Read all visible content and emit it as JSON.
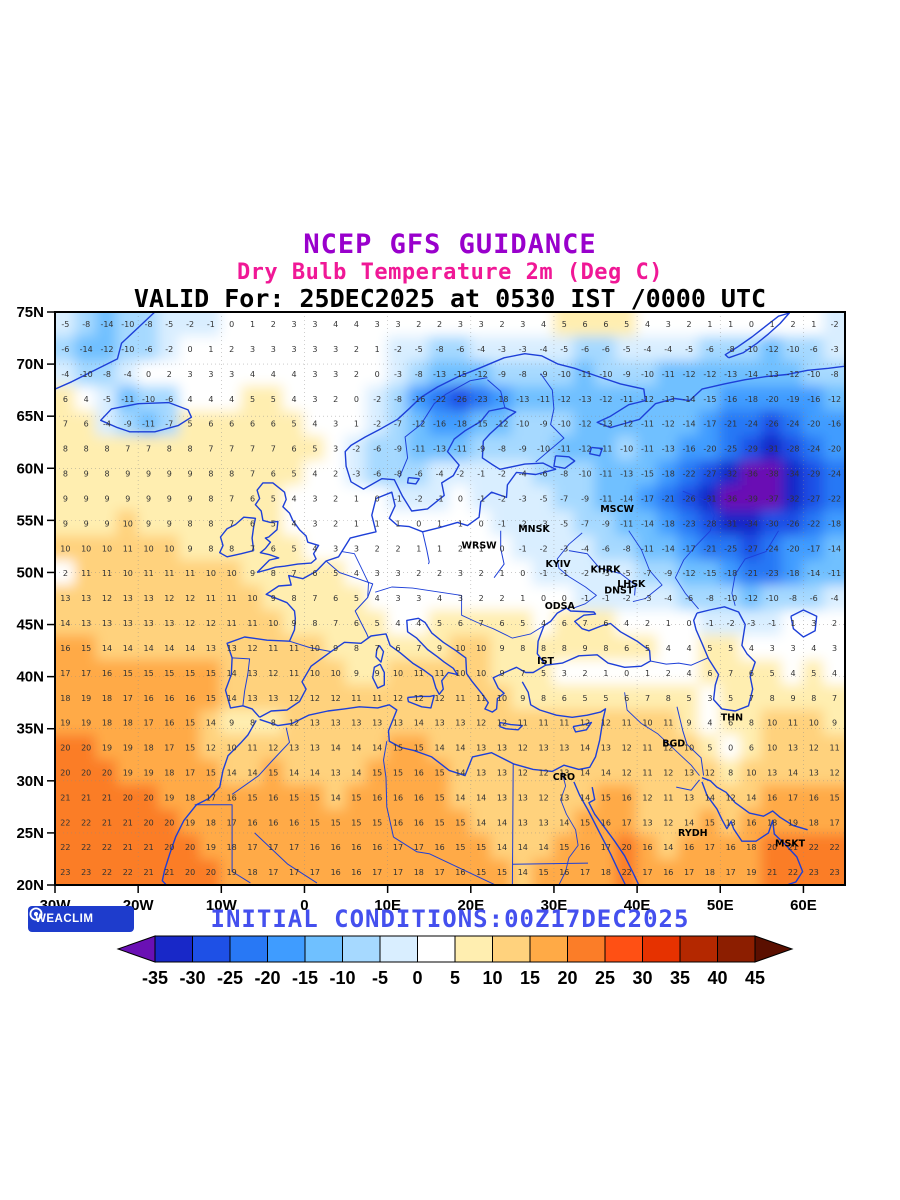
{
  "header": {
    "title1": "NCEP GFS GUIDANCE",
    "title2": "Dry Bulb Temperature 2m (Deg C)",
    "valid_line": "VALID For: 25DEC2025 at 0530 IST /0000 UTC",
    "colors": {
      "title1": "#9900cc",
      "title2": "#f01896",
      "valid": "#000000"
    }
  },
  "map": {
    "window": {
      "lon_min": -30,
      "lon_max": 65,
      "lat_min": 20,
      "lat_max": 75
    },
    "line_color": "#1d3fd8",
    "lat_ticks": [
      {
        "label": "75N",
        "lat": 75
      },
      {
        "label": "70N",
        "lat": 70
      },
      {
        "label": "65N",
        "lat": 65
      },
      {
        "label": "60N",
        "lat": 60
      },
      {
        "label": "55N",
        "lat": 55
      },
      {
        "label": "50N",
        "lat": 50
      },
      {
        "label": "45N",
        "lat": 45
      },
      {
        "label": "40N",
        "lat": 40
      },
      {
        "label": "35N",
        "lat": 35
      },
      {
        "label": "30N",
        "lat": 30
      },
      {
        "label": "25N",
        "lat": 25
      },
      {
        "label": "20N",
        "lat": 20
      }
    ],
    "lon_ticks": [
      {
        "label": "30W",
        "lon": -30
      },
      {
        "label": "20W",
        "lon": -20
      },
      {
        "label": "10W",
        "lon": -10
      },
      {
        "label": "0",
        "lon": 0
      },
      {
        "label": "10E",
        "lon": 10
      },
      {
        "label": "20E",
        "lon": 20
      },
      {
        "label": "30E",
        "lon": 30
      },
      {
        "label": "40E",
        "lon": 40
      },
      {
        "label": "50E",
        "lon": 50
      },
      {
        "label": "60E",
        "lon": 60
      }
    ],
    "cities": [
      {
        "name": "MSCW",
        "lon": 37.6,
        "lat": 55.8
      },
      {
        "name": "MNSK",
        "lon": 27.6,
        "lat": 53.9
      },
      {
        "name": "WRSW",
        "lon": 21.0,
        "lat": 52.3
      },
      {
        "name": "KYIV",
        "lon": 30.5,
        "lat": 50.5
      },
      {
        "name": "KHRK",
        "lon": 36.2,
        "lat": 50.0
      },
      {
        "name": "LHSK",
        "lon": 39.3,
        "lat": 48.6
      },
      {
        "name": "DNST",
        "lon": 37.8,
        "lat": 48.0
      },
      {
        "name": "ODSA",
        "lon": 30.7,
        "lat": 46.5
      },
      {
        "name": "IST",
        "lon": 29.0,
        "lat": 41.2
      },
      {
        "name": "THN",
        "lon": 51.4,
        "lat": 35.8
      },
      {
        "name": "BGD",
        "lon": 44.4,
        "lat": 33.3
      },
      {
        "name": "CRO",
        "lon": 31.2,
        "lat": 30.1
      },
      {
        "name": "RYDH",
        "lon": 46.7,
        "lat": 24.7
      },
      {
        "name": "MSKT",
        "lon": 58.4,
        "lat": 23.7
      }
    ]
  },
  "temperature_grid": {
    "units": "Deg C",
    "lat_start": 75,
    "lat_step": -2.5,
    "lon_start": -30,
    "lon_step": 2.5,
    "values": [
      [
        -5,
        -8,
        -14,
        -10,
        -8,
        -5,
        -2,
        -1,
        0,
        1,
        2,
        3,
        3,
        4,
        4,
        3,
        3,
        2,
        2,
        3,
        3,
        2,
        3,
        4,
        5,
        6,
        6,
        5,
        4,
        3,
        2,
        1,
        1,
        0,
        1,
        2,
        1,
        -2
      ],
      [
        -6,
        -14,
        -12,
        -10,
        -6,
        -2,
        0,
        1,
        2,
        3,
        3,
        3,
        3,
        3,
        2,
        1,
        -2,
        -5,
        -8,
        -6,
        -4,
        -3,
        -3,
        -4,
        -5,
        -6,
        -6,
        -5,
        -4,
        -4,
        -5,
        -6,
        -8,
        -10,
        -12,
        -10,
        -6,
        -3
      ],
      [
        -4,
        -10,
        -8,
        -4,
        0,
        2,
        3,
        3,
        3,
        4,
        4,
        4,
        3,
        3,
        2,
        0,
        -3,
        -8,
        -13,
        -15,
        -12,
        -9,
        -8,
        -9,
        -10,
        -11,
        -10,
        -9,
        -10,
        -11,
        -12,
        -12,
        -13,
        -14,
        -13,
        -12,
        -10,
        -8
      ],
      [
        6,
        4,
        -5,
        -11,
        -10,
        -6,
        4,
        4,
        4,
        5,
        5,
        4,
        3,
        2,
        0,
        -2,
        -8,
        -16,
        -22,
        -26,
        -23,
        -18,
        -13,
        -11,
        -12,
        -13,
        -12,
        -11,
        -12,
        -13,
        -14,
        -15,
        -16,
        -18,
        -20,
        -19,
        -16,
        -12
      ],
      [
        7,
        6,
        -4,
        -9,
        -11,
        -7,
        5,
        6,
        6,
        6,
        6,
        5,
        4,
        3,
        1,
        -2,
        -7,
        -12,
        -16,
        -18,
        -15,
        -12,
        -10,
        -9,
        -10,
        -12,
        -13,
        -12,
        -11,
        -12,
        -14,
        -17,
        -21,
        -24,
        -26,
        -24,
        -20,
        -16
      ],
      [
        8,
        8,
        8,
        7,
        7,
        8,
        8,
        7,
        7,
        7,
        7,
        6,
        5,
        3,
        -2,
        -6,
        -9,
        -11,
        -13,
        -11,
        -9,
        -8,
        -9,
        -10,
        -11,
        -12,
        -11,
        -10,
        -11,
        -13,
        -16,
        -20,
        -25,
        -29,
        -31,
        -28,
        -24,
        -20
      ],
      [
        8,
        9,
        8,
        9,
        9,
        9,
        9,
        8,
        8,
        7,
        6,
        5,
        4,
        2,
        -3,
        -6,
        -8,
        -6,
        -4,
        -2,
        -1,
        -2,
        -4,
        -6,
        -8,
        -10,
        -11,
        -13,
        -15,
        -18,
        -22,
        -27,
        -32,
        -36,
        -38,
        -34,
        -29,
        -24
      ],
      [
        9,
        9,
        9,
        9,
        9,
        9,
        9,
        8,
        7,
        6,
        5,
        4,
        3,
        2,
        1,
        0,
        -1,
        -2,
        -1,
        0,
        -1,
        -2,
        -3,
        -5,
        -7,
        -9,
        -11,
        -14,
        -17,
        -21,
        -26,
        -31,
        -36,
        -39,
        -37,
        -32,
        -27,
        -22
      ],
      [
        9,
        9,
        9,
        10,
        9,
        9,
        8,
        8,
        7,
        6,
        5,
        4,
        3,
        2,
        1,
        1,
        1,
        0,
        1,
        1,
        0,
        -1,
        -2,
        -3,
        -5,
        -7,
        -9,
        -11,
        -14,
        -18,
        -23,
        -28,
        -31,
        -34,
        -30,
        -26,
        -22,
        -18
      ],
      [
        10,
        10,
        10,
        11,
        10,
        10,
        9,
        8,
        8,
        7,
        6,
        5,
        4,
        3,
        3,
        2,
        2,
        1,
        1,
        2,
        1,
        0,
        -1,
        -2,
        -3,
        -4,
        -6,
        -8,
        -11,
        -14,
        -17,
        -21,
        -25,
        -27,
        -24,
        -20,
        -17,
        -14
      ],
      [
        2,
        11,
        11,
        10,
        11,
        11,
        11,
        10,
        10,
        9,
        8,
        7,
        6,
        5,
        4,
        3,
        3,
        2,
        2,
        3,
        2,
        1,
        0,
        -1,
        -1,
        -2,
        -3,
        -5,
        -7,
        -9,
        -12,
        -15,
        -18,
        -21,
        -23,
        -18,
        -14,
        -11
      ],
      [
        13,
        13,
        12,
        13,
        13,
        12,
        12,
        11,
        11,
        10,
        9,
        8,
        7,
        6,
        5,
        4,
        3,
        3,
        4,
        3,
        2,
        2,
        1,
        0,
        0,
        -1,
        -1,
        -2,
        -3,
        -4,
        -6,
        -8,
        -10,
        -12,
        -10,
        -8,
        -6,
        -4
      ],
      [
        14,
        13,
        13,
        13,
        13,
        13,
        12,
        12,
        11,
        11,
        10,
        9,
        8,
        7,
        6,
        5,
        4,
        4,
        5,
        6,
        7,
        6,
        5,
        4,
        6,
        7,
        6,
        4,
        2,
        1,
        0,
        -1,
        -2,
        -3,
        -1,
        1,
        3,
        2
      ],
      [
        16,
        15,
        14,
        14,
        14,
        14,
        14,
        13,
        13,
        12,
        11,
        11,
        10,
        9,
        8,
        7,
        6,
        7,
        9,
        10,
        10,
        9,
        8,
        8,
        8,
        9,
        8,
        6,
        5,
        4,
        4,
        5,
        5,
        4,
        3,
        3,
        4,
        3
      ],
      [
        17,
        17,
        16,
        15,
        15,
        15,
        15,
        15,
        14,
        13,
        12,
        11,
        10,
        10,
        9,
        9,
        10,
        11,
        11,
        10,
        10,
        9,
        7,
        5,
        3,
        2,
        1,
        0,
        1,
        2,
        4,
        6,
        7,
        6,
        5,
        4,
        5,
        4
      ],
      [
        18,
        19,
        18,
        17,
        16,
        16,
        16,
        15,
        14,
        13,
        13,
        12,
        12,
        12,
        11,
        11,
        12,
        12,
        12,
        11,
        11,
        10,
        9,
        8,
        6,
        5,
        5,
        6,
        7,
        8,
        5,
        3,
        5,
        7,
        8,
        9,
        8,
        7
      ],
      [
        19,
        19,
        18,
        18,
        17,
        16,
        15,
        14,
        9,
        8,
        8,
        12,
        13,
        13,
        13,
        13,
        13,
        14,
        13,
        13,
        12,
        12,
        11,
        11,
        11,
        12,
        12,
        11,
        10,
        11,
        9,
        4,
        6,
        8,
        10,
        11,
        10,
        9
      ],
      [
        20,
        20,
        19,
        19,
        18,
        17,
        15,
        12,
        10,
        11,
        12,
        13,
        13,
        14,
        14,
        14,
        15,
        15,
        14,
        14,
        13,
        13,
        12,
        13,
        13,
        14,
        13,
        12,
        11,
        12,
        10,
        5,
        0,
        6,
        10,
        13,
        12,
        11
      ],
      [
        20,
        20,
        20,
        19,
        19,
        18,
        17,
        15,
        14,
        14,
        15,
        14,
        14,
        13,
        14,
        15,
        15,
        16,
        15,
        14,
        13,
        13,
        12,
        12,
        13,
        14,
        14,
        12,
        11,
        12,
        13,
        12,
        8,
        10,
        13,
        14,
        13,
        12
      ],
      [
        21,
        21,
        21,
        20,
        20,
        19,
        18,
        17,
        16,
        15,
        16,
        15,
        15,
        14,
        15,
        16,
        16,
        16,
        15,
        14,
        14,
        13,
        13,
        12,
        13,
        14,
        15,
        16,
        12,
        11,
        13,
        14,
        12,
        14,
        16,
        17,
        16,
        15
      ],
      [
        22,
        22,
        21,
        21,
        20,
        20,
        19,
        18,
        17,
        16,
        16,
        16,
        15,
        15,
        15,
        15,
        16,
        16,
        15,
        15,
        14,
        14,
        13,
        13,
        14,
        15,
        16,
        17,
        13,
        12,
        14,
        15,
        13,
        16,
        18,
        19,
        18,
        17
      ],
      [
        22,
        22,
        22,
        21,
        21,
        20,
        20,
        19,
        18,
        17,
        17,
        17,
        16,
        16,
        16,
        16,
        17,
        17,
        16,
        15,
        15,
        14,
        14,
        14,
        15,
        16,
        17,
        20,
        16,
        14,
        16,
        17,
        16,
        18,
        20,
        21,
        22,
        22
      ],
      [
        23,
        23,
        22,
        22,
        21,
        21,
        20,
        20,
        19,
        18,
        17,
        17,
        17,
        16,
        16,
        17,
        17,
        18,
        17,
        16,
        15,
        15,
        14,
        15,
        16,
        17,
        18,
        22,
        17,
        16,
        17,
        18,
        17,
        19,
        21,
        22,
        23,
        23
      ]
    ]
  },
  "palette": {
    "bands": [
      {
        "max": -35,
        "color": "#6a10b4"
      },
      {
        "max": -30,
        "color": "#1828c8"
      },
      {
        "max": -25,
        "color": "#1e50e6"
      },
      {
        "max": -20,
        "color": "#2878f5"
      },
      {
        "max": -15,
        "color": "#3f9cff"
      },
      {
        "max": -10,
        "color": "#6fc0ff"
      },
      {
        "max": -5,
        "color": "#a6d9ff"
      },
      {
        "max": 0,
        "color": "#d9eeff"
      },
      {
        "max": 5,
        "color": "#ffffff"
      },
      {
        "max": 10,
        "color": "#ffeeb0"
      },
      {
        "max": 15,
        "color": "#ffd27d"
      },
      {
        "max": 20,
        "color": "#ffaa46"
      },
      {
        "max": 25,
        "color": "#fb7d28"
      },
      {
        "max": 30,
        "color": "#ff5014"
      },
      {
        "max": 35,
        "color": "#e63200"
      },
      {
        "max": 40,
        "color": "#b42800"
      },
      {
        "max": 45,
        "color": "#8c1e00"
      }
    ],
    "above": "#5a0f00"
  },
  "colorbar": {
    "ticks": [
      -35,
      -30,
      -25,
      -20,
      -15,
      -10,
      -5,
      0,
      5,
      10,
      15,
      20,
      25,
      30,
      35,
      40,
      45
    ]
  },
  "footer": {
    "initial_conditions": "INITIAL CONDITIONS:00Z17DEC2025",
    "color": "#4450ee",
    "logo_text": "WEACLIM",
    "logo_bg": "#1e3ccc"
  }
}
